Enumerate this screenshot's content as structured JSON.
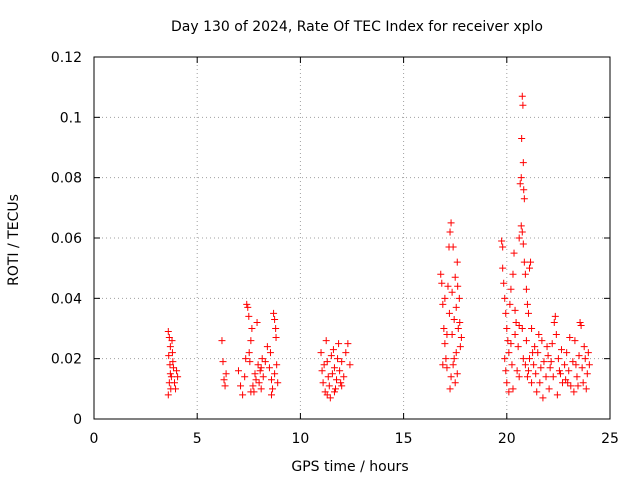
{
  "chart_data": {
    "type": "scatter",
    "title": "Day 130 of 2024, Rate Of TEC Index for receiver xplo",
    "xlabel": "GPS time / hours",
    "ylabel": "ROTI / TECUs",
    "xlim": [
      0,
      25
    ],
    "ylim": [
      0,
      0.12
    ],
    "grid": true,
    "x_ticks": [
      0,
      5,
      10,
      15,
      20,
      25
    ],
    "x_tick_labels": [
      "0",
      "5",
      "10",
      "15",
      "20",
      "25"
    ],
    "y_ticks": [
      0,
      0.02,
      0.04,
      0.06,
      0.08,
      0.1,
      0.12
    ],
    "y_tick_labels": [
      "0",
      "0.02",
      "0.04",
      "0.06",
      "0.08",
      "0.1",
      "0.12"
    ],
    "marker": "+",
    "color": "#ff0000",
    "series": [
      {
        "name": "ROTI",
        "points": [
          [
            3.6,
            0.029
          ],
          [
            3.65,
            0.027
          ],
          [
            3.7,
            0.024
          ],
          [
            3.62,
            0.021
          ],
          [
            3.68,
            0.018
          ],
          [
            3.7,
            0.015
          ],
          [
            3.65,
            0.012
          ],
          [
            3.72,
            0.01
          ],
          [
            3.6,
            0.008
          ],
          [
            3.75,
            0.014
          ],
          [
            3.8,
            0.022
          ],
          [
            3.85,
            0.017
          ],
          [
            3.9,
            0.012
          ],
          [
            3.95,
            0.01
          ],
          [
            4.0,
            0.016
          ],
          [
            4.05,
            0.014
          ],
          [
            3.78,
            0.026
          ],
          [
            3.82,
            0.019
          ],
          [
            6.2,
            0.026
          ],
          [
            6.25,
            0.019
          ],
          [
            6.3,
            0.013
          ],
          [
            6.35,
            0.011
          ],
          [
            6.4,
            0.015
          ],
          [
            7.0,
            0.016
          ],
          [
            7.1,
            0.011
          ],
          [
            7.2,
            0.008
          ],
          [
            7.3,
            0.014
          ],
          [
            7.4,
            0.038
          ],
          [
            7.45,
            0.037
          ],
          [
            7.5,
            0.034
          ],
          [
            7.52,
            0.022
          ],
          [
            7.55,
            0.019
          ],
          [
            7.6,
            0.026
          ],
          [
            7.65,
            0.03
          ],
          [
            7.7,
            0.011
          ],
          [
            7.75,
            0.009
          ],
          [
            7.8,
            0.015
          ],
          [
            7.85,
            0.013
          ],
          [
            7.9,
            0.032
          ],
          [
            7.95,
            0.018
          ],
          [
            8.0,
            0.012
          ],
          [
            8.05,
            0.016
          ],
          [
            8.1,
            0.01
          ],
          [
            8.15,
            0.02
          ],
          [
            8.2,
            0.014
          ],
          [
            8.3,
            0.019
          ],
          [
            8.4,
            0.024
          ],
          [
            8.5,
            0.017
          ],
          [
            8.55,
            0.022
          ],
          [
            8.6,
            0.013
          ],
          [
            8.65,
            0.01
          ],
          [
            8.7,
            0.035
          ],
          [
            8.75,
            0.033
          ],
          [
            8.8,
            0.03
          ],
          [
            8.82,
            0.027
          ],
          [
            8.85,
            0.018
          ],
          [
            8.9,
            0.012
          ],
          [
            8.75,
            0.015
          ],
          [
            8.6,
            0.008
          ],
          [
            7.6,
            0.009
          ],
          [
            8.1,
            0.017
          ],
          [
            7.35,
            0.02
          ],
          [
            11.0,
            0.022
          ],
          [
            11.05,
            0.016
          ],
          [
            11.1,
            0.012
          ],
          [
            11.15,
            0.018
          ],
          [
            11.2,
            0.009
          ],
          [
            11.25,
            0.026
          ],
          [
            11.3,
            0.019
          ],
          [
            11.35,
            0.014
          ],
          [
            11.4,
            0.011
          ],
          [
            11.45,
            0.007
          ],
          [
            11.5,
            0.021
          ],
          [
            11.55,
            0.015
          ],
          [
            11.6,
            0.023
          ],
          [
            11.65,
            0.017
          ],
          [
            11.7,
            0.01
          ],
          [
            11.75,
            0.013
          ],
          [
            11.8,
            0.02
          ],
          [
            11.85,
            0.025
          ],
          [
            11.9,
            0.016
          ],
          [
            11.95,
            0.012
          ],
          [
            12.0,
            0.019
          ],
          [
            12.1,
            0.014
          ],
          [
            12.2,
            0.022
          ],
          [
            12.3,
            0.025
          ],
          [
            12.4,
            0.018
          ],
          [
            11.3,
            0.008
          ],
          [
            11.65,
            0.009
          ],
          [
            12.0,
            0.011
          ],
          [
            16.8,
            0.048
          ],
          [
            16.85,
            0.045
          ],
          [
            16.9,
            0.038
          ],
          [
            16.95,
            0.03
          ],
          [
            17.0,
            0.025
          ],
          [
            17.05,
            0.02
          ],
          [
            17.1,
            0.017
          ],
          [
            17.0,
            0.04
          ],
          [
            17.15,
            0.044
          ],
          [
            17.2,
            0.057
          ],
          [
            17.22,
            0.035
          ],
          [
            17.25,
            0.062
          ],
          [
            17.3,
            0.065
          ],
          [
            17.3,
            0.014
          ],
          [
            17.35,
            0.028
          ],
          [
            17.4,
            0.057
          ],
          [
            17.45,
            0.033
          ],
          [
            17.5,
            0.047
          ],
          [
            17.55,
            0.037
          ],
          [
            17.6,
            0.052
          ],
          [
            17.62,
            0.044
          ],
          [
            17.65,
            0.03
          ],
          [
            17.7,
            0.04
          ],
          [
            17.72,
            0.032
          ],
          [
            17.75,
            0.024
          ],
          [
            17.4,
            0.018
          ],
          [
            17.5,
            0.012
          ],
          [
            17.55,
            0.022
          ],
          [
            17.25,
            0.01
          ],
          [
            16.9,
            0.018
          ],
          [
            17.1,
            0.028
          ],
          [
            17.45,
            0.02
          ],
          [
            17.6,
            0.015
          ],
          [
            17.35,
            0.042
          ],
          [
            17.8,
            0.027
          ],
          [
            19.75,
            0.059
          ],
          [
            19.8,
            0.057
          ],
          [
            19.8,
            0.05
          ],
          [
            19.85,
            0.045
          ],
          [
            19.9,
            0.04
          ],
          [
            19.9,
            0.02
          ],
          [
            19.95,
            0.035
          ],
          [
            20.0,
            0.03
          ],
          [
            20.0,
            0.012
          ],
          [
            20.05,
            0.026
          ],
          [
            20.1,
            0.022
          ],
          [
            20.15,
            0.038
          ],
          [
            20.2,
            0.043
          ],
          [
            20.25,
            0.018
          ],
          [
            20.3,
            0.048
          ],
          [
            20.35,
            0.055
          ],
          [
            20.4,
            0.028
          ],
          [
            20.45,
            0.032
          ],
          [
            20.5,
            0.016
          ],
          [
            20.55,
            0.024
          ],
          [
            20.6,
            0.06
          ],
          [
            20.65,
            0.078
          ],
          [
            20.7,
            0.08
          ],
          [
            20.72,
            0.093
          ],
          [
            20.75,
            0.107
          ],
          [
            20.78,
            0.104
          ],
          [
            20.8,
            0.085
          ],
          [
            20.82,
            0.076
          ],
          [
            20.85,
            0.073
          ],
          [
            20.7,
            0.064
          ],
          [
            20.75,
            0.062
          ],
          [
            20.8,
            0.058
          ],
          [
            20.85,
            0.052
          ],
          [
            20.9,
            0.048
          ],
          [
            20.95,
            0.043
          ],
          [
            21.0,
            0.038
          ],
          [
            21.05,
            0.035
          ],
          [
            21.1,
            0.05
          ],
          [
            21.15,
            0.052
          ],
          [
            21.2,
            0.03
          ],
          [
            21.25,
            0.022
          ],
          [
            20.9,
            0.018
          ],
          [
            20.95,
            0.026
          ],
          [
            21.0,
            0.014
          ],
          [
            21.1,
            0.02
          ],
          [
            21.2,
            0.012
          ],
          [
            20.1,
            0.009
          ],
          [
            20.3,
            0.01
          ],
          [
            20.6,
            0.014
          ],
          [
            20.8,
            0.02
          ],
          [
            20.2,
            0.025
          ],
          [
            20.4,
            0.036
          ],
          [
            20.6,
            0.031
          ],
          [
            20.75,
            0.03
          ],
          [
            21.05,
            0.016
          ],
          [
            19.95,
            0.016
          ],
          [
            21.3,
            0.018
          ],
          [
            21.4,
            0.015
          ],
          [
            21.5,
            0.022
          ],
          [
            21.6,
            0.012
          ],
          [
            21.7,
            0.026
          ],
          [
            21.8,
            0.019
          ],
          [
            21.9,
            0.014
          ],
          [
            22.0,
            0.021
          ],
          [
            22.1,
            0.017
          ],
          [
            22.2,
            0.025
          ],
          [
            22.3,
            0.032
          ],
          [
            22.35,
            0.034
          ],
          [
            22.4,
            0.028
          ],
          [
            22.5,
            0.02
          ],
          [
            22.6,
            0.015
          ],
          [
            22.7,
            0.012
          ],
          [
            22.8,
            0.018
          ],
          [
            22.9,
            0.022
          ],
          [
            23.0,
            0.016
          ],
          [
            23.1,
            0.011
          ],
          [
            23.2,
            0.019
          ],
          [
            23.3,
            0.026
          ],
          [
            23.4,
            0.014
          ],
          [
            23.5,
            0.021
          ],
          [
            23.55,
            0.032
          ],
          [
            23.6,
            0.031
          ],
          [
            23.65,
            0.017
          ],
          [
            23.7,
            0.012
          ],
          [
            23.8,
            0.02
          ],
          [
            23.9,
            0.015
          ],
          [
            24.0,
            0.018
          ],
          [
            21.45,
            0.009
          ],
          [
            21.75,
            0.007
          ],
          [
            22.05,
            0.01
          ],
          [
            22.45,
            0.008
          ],
          [
            22.85,
            0.013
          ],
          [
            23.25,
            0.009
          ],
          [
            23.75,
            0.024
          ],
          [
            21.55,
            0.028
          ],
          [
            21.95,
            0.024
          ],
          [
            22.25,
            0.014
          ],
          [
            22.65,
            0.023
          ],
          [
            23.05,
            0.027
          ],
          [
            23.45,
            0.011
          ],
          [
            23.85,
            0.01
          ],
          [
            21.35,
            0.024
          ],
          [
            21.65,
            0.017
          ],
          [
            22.15,
            0.019
          ],
          [
            22.55,
            0.016
          ],
          [
            22.95,
            0.012
          ],
          [
            23.35,
            0.018
          ],
          [
            23.95,
            0.022
          ]
        ]
      }
    ]
  }
}
